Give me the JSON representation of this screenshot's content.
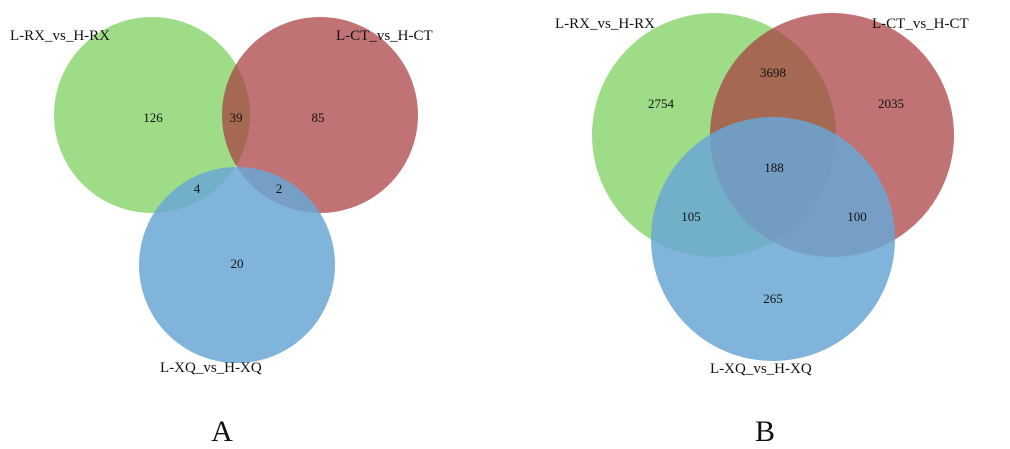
{
  "colors": {
    "green": "#7fd060",
    "red": "#a83b3e",
    "blue": "#6aa7d4"
  },
  "diagrams": [
    {
      "panel_label": "A",
      "sets": [
        "L-RX_vs_H-RX",
        "L-CT_vs_H-CT",
        "L-XQ_vs_H-XQ"
      ],
      "regions": {
        "rx_only": "126",
        "rx_ct": "39",
        "ct_only": "85",
        "rx_xq": "4",
        "ct_xq": "2",
        "xq_only": "20"
      }
    },
    {
      "panel_label": "B",
      "sets": [
        "L-RX_vs_H-RX",
        "L-CT_vs_H-CT",
        "L-XQ_vs_H-XQ"
      ],
      "regions": {
        "rx_only": "2754",
        "rx_ct": "3698",
        "ct_only": "2035",
        "all": "188",
        "rx_xq": "105",
        "ct_xq": "100",
        "xq_only": "265"
      }
    }
  ]
}
